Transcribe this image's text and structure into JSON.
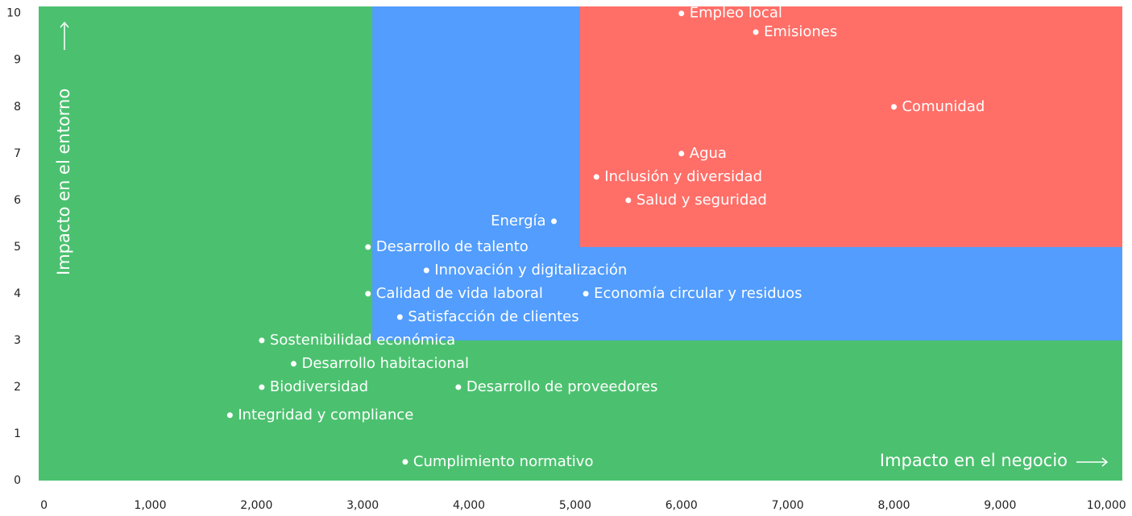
{
  "chart_data": {
    "type": "scatter",
    "x_label": "Impacto en el negocio",
    "y_label": "Impacto en el entorno",
    "xlim": [
      -50,
      10150
    ],
    "ylim": [
      0,
      10.15
    ],
    "xticks": [
      0,
      {
        "value": 1000,
        "label": "1,000"
      },
      {
        "value": 2000,
        "label": "2,000"
      },
      {
        "value": 3000,
        "label": "3,000"
      },
      {
        "value": 4000,
        "label": "4,000"
      },
      {
        "value": 5000,
        "label": "5,000"
      },
      {
        "value": 6000,
        "label": "6,000"
      },
      {
        "value": 7000,
        "label": "7,000"
      },
      {
        "value": 8000,
        "label": "8,000"
      },
      {
        "value": 9000,
        "label": "9,000"
      },
      {
        "value": 10000,
        "label": "10,000"
      }
    ],
    "yticks": [
      0,
      1,
      2,
      3,
      4,
      5,
      6,
      7,
      8,
      9,
      10
    ],
    "regions": [
      {
        "color": "#4bc16f",
        "x": [
          -50,
          10150
        ],
        "y": [
          0,
          10.15
        ]
      },
      {
        "color": "#529dfd",
        "x": [
          3090,
          10150
        ],
        "y": [
          3,
          10.15
        ]
      },
      {
        "color": "#ff6f68",
        "x": [
          5045,
          10150
        ],
        "y": [
          5,
          10.15
        ]
      }
    ],
    "point_color": "#ffffff",
    "labels": [
      "Empleo local",
      "Emisiones",
      "Comunidad",
      "Agua",
      "Inclusión y diversidad",
      "Salud y seguridad",
      "Energía",
      "Desarrollo de talento",
      "Innovación y digitalización",
      "Calidad de vida laboral",
      "Economía circular y residuos",
      "Satisfacción de clientes",
      "Sostenibilidad económica",
      "Desarrollo habitacional",
      "Biodiversidad",
      "Desarrollo de proveedores",
      "Integridad y compliance",
      "Cumplimiento normativo"
    ],
    "x": [
      6000,
      6700,
      8000,
      6000,
      5200,
      5500,
      4800,
      3050,
      3600,
      3050,
      5100,
      3350,
      2050,
      2350,
      2050,
      3900,
      1750,
      3400
    ],
    "y": [
      10,
      9.6,
      8,
      7,
      6.5,
      6,
      5.55,
      5,
      4.5,
      4,
      4,
      3.5,
      3,
      2.5,
      2,
      2,
      1.4,
      0.4
    ]
  }
}
